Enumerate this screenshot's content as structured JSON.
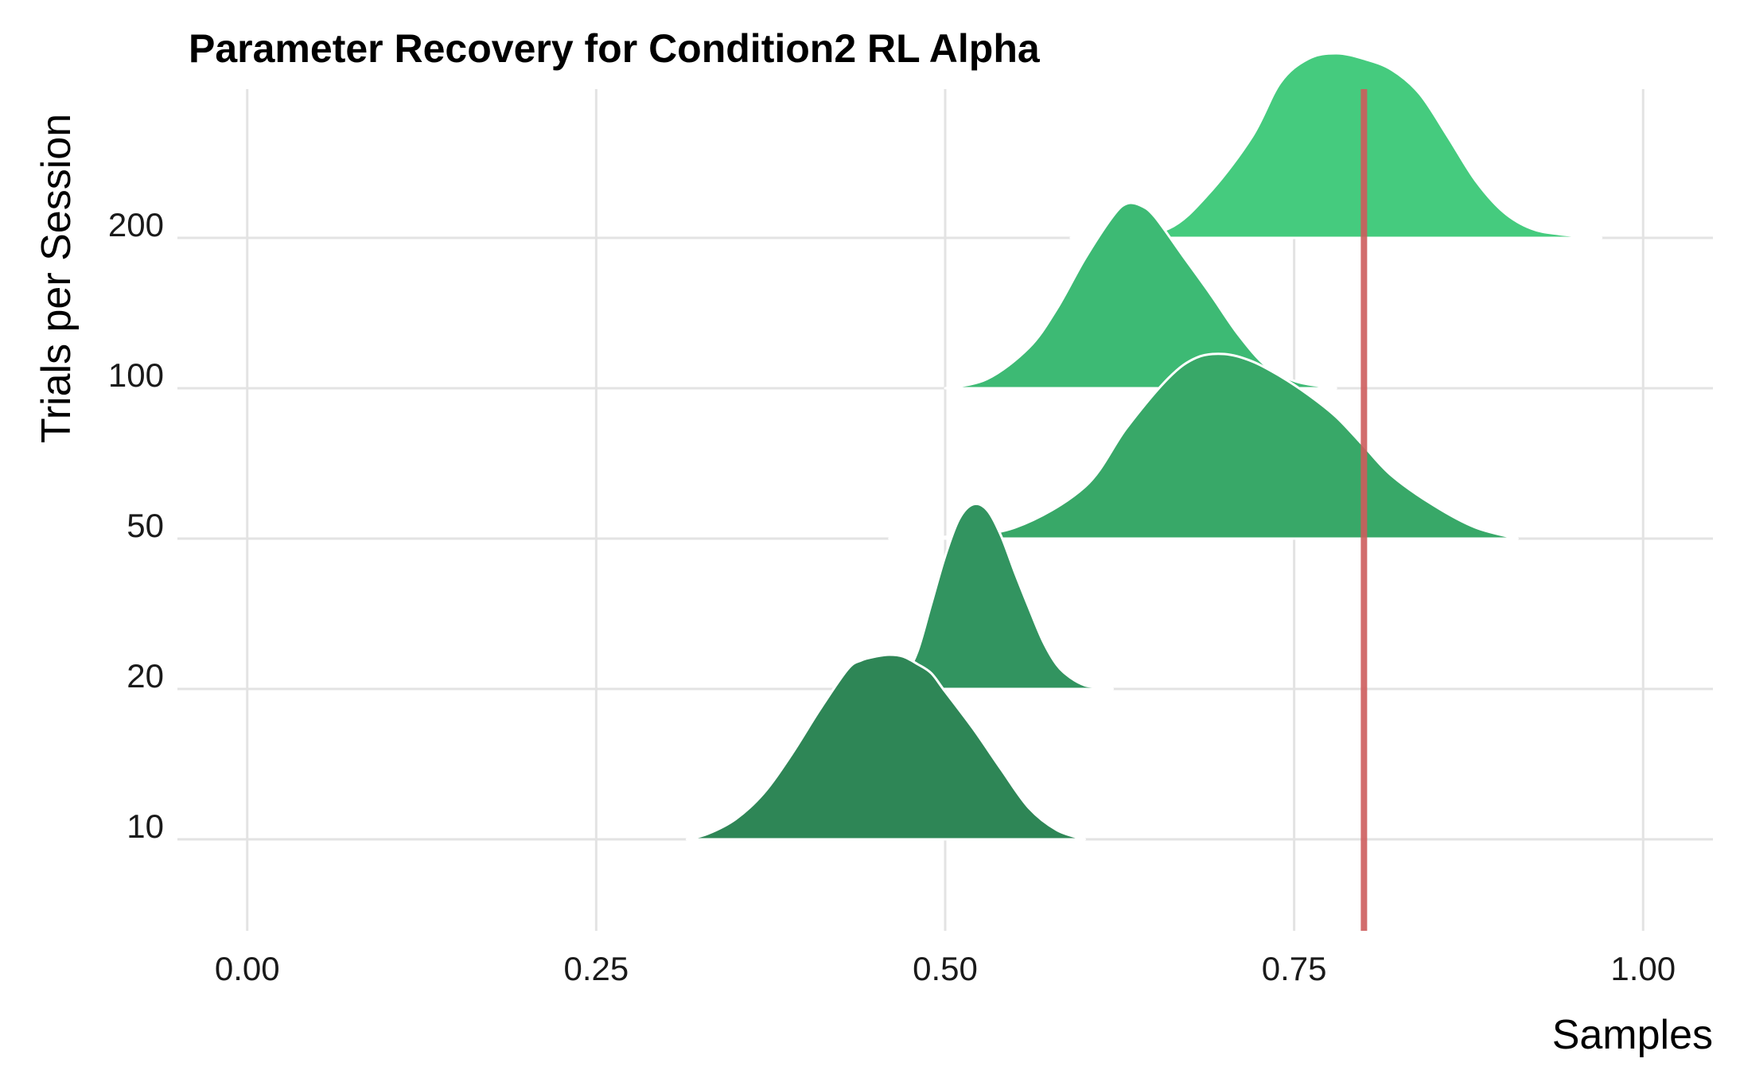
{
  "chart_data": {
    "type": "ridgeline",
    "title": "Parameter Recovery for Condition2 RL Alpha",
    "xlabel": "Samples",
    "ylabel": "Trials per Session",
    "xlim": [
      -0.05,
      1.05
    ],
    "x_ticks": [
      0.0,
      0.25,
      0.5,
      0.75,
      1.0
    ],
    "x_tick_labels": [
      "0.00",
      "0.25",
      "0.50",
      "0.75",
      "1.00"
    ],
    "categories": [
      "10",
      "20",
      "50",
      "100",
      "200"
    ],
    "reference_line": {
      "x": 0.8,
      "color": "#cd5c5c"
    },
    "grid": true,
    "series": [
      {
        "name": "10",
        "color": "#2e8656",
        "x": [
          0.315,
          0.33,
          0.35,
          0.37,
          0.39,
          0.41,
          0.43,
          0.44,
          0.45,
          0.46,
          0.47,
          0.48,
          0.49,
          0.5,
          0.52,
          0.54,
          0.56,
          0.58,
          0.6
        ],
        "y": [
          0.0,
          0.03,
          0.11,
          0.25,
          0.46,
          0.7,
          0.92,
          0.97,
          0.99,
          1.0,
          0.99,
          0.95,
          0.9,
          0.8,
          0.6,
          0.38,
          0.17,
          0.05,
          0.0
        ]
      },
      {
        "name": "20",
        "color": "#329460",
        "x": [
          0.46,
          0.47,
          0.48,
          0.49,
          0.5,
          0.51,
          0.52,
          0.53,
          0.54,
          0.55,
          0.56,
          0.57,
          0.58,
          0.59,
          0.6,
          0.61,
          0.62
        ],
        "y": [
          0.0,
          0.06,
          0.2,
          0.46,
          0.72,
          0.92,
          1.0,
          0.97,
          0.83,
          0.63,
          0.44,
          0.26,
          0.13,
          0.06,
          0.02,
          0.01,
          0.0
        ]
      },
      {
        "name": "50",
        "color": "#38a868",
        "x": [
          0.46,
          0.5,
          0.55,
          0.6,
          0.63,
          0.66,
          0.68,
          0.7,
          0.72,
          0.74,
          0.76,
          0.78,
          0.8,
          0.82,
          0.85,
          0.88,
          0.91
        ],
        "y": [
          0.0,
          0.01,
          0.06,
          0.28,
          0.6,
          0.87,
          0.98,
          1.0,
          0.96,
          0.88,
          0.78,
          0.66,
          0.5,
          0.34,
          0.18,
          0.06,
          0.0
        ]
      },
      {
        "name": "100",
        "color": "#3dba74",
        "x": [
          0.5,
          0.53,
          0.56,
          0.58,
          0.6,
          0.62,
          0.63,
          0.64,
          0.65,
          0.67,
          0.69,
          0.71,
          0.73,
          0.75,
          0.77,
          0.78
        ],
        "y": [
          0.0,
          0.05,
          0.22,
          0.43,
          0.7,
          0.93,
          1.0,
          0.99,
          0.93,
          0.72,
          0.51,
          0.29,
          0.12,
          0.04,
          0.01,
          0.0
        ]
      },
      {
        "name": "200",
        "color": "#45cb7e",
        "x": [
          0.59,
          0.62,
          0.66,
          0.69,
          0.72,
          0.74,
          0.76,
          0.78,
          0.8,
          0.82,
          0.84,
          0.86,
          0.88,
          0.9,
          0.92,
          0.94,
          0.97
        ],
        "y": [
          0.0,
          0.01,
          0.05,
          0.25,
          0.55,
          0.84,
          0.97,
          1.0,
          0.97,
          0.91,
          0.78,
          0.55,
          0.31,
          0.14,
          0.05,
          0.02,
          0.0
        ]
      }
    ]
  }
}
